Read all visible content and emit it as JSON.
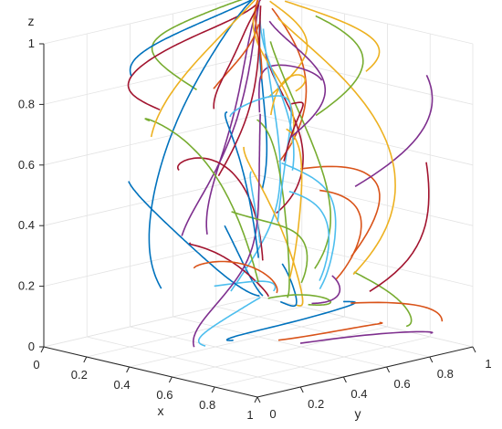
{
  "chart_data": {
    "type": "line",
    "view": "3d",
    "title": "",
    "xlabel": "x",
    "ylabel": "y",
    "zlabel": "z",
    "xlim": [
      0,
      1
    ],
    "ylim": [
      0,
      1
    ],
    "zlim": [
      0,
      1
    ],
    "x_ticks": [
      "0",
      "0.2",
      "0.4",
      "0.6",
      "0.8",
      "1"
    ],
    "y_ticks": [
      "0",
      "0.2",
      "0.4",
      "0.6",
      "0.8",
      "1"
    ],
    "z_ticks": [
      "0",
      "0.2",
      "0.4",
      "0.6",
      "0.8",
      "1"
    ],
    "grid": true,
    "legend": "none",
    "colors": [
      "#0072BD",
      "#D95319",
      "#EDB120",
      "#7E2F8E",
      "#77AC30",
      "#4DBEEE",
      "#A2142F"
    ],
    "series_count": 56,
    "description_of_curves": "Evolutionary trajectories from many initial points in the unit cube converging toward the corner edges x=0 and y=1"
  }
}
